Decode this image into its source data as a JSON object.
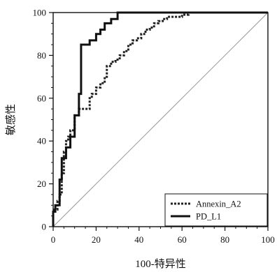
{
  "chart_data": {
    "type": "line",
    "xlabel": "100-特异性",
    "ylabel": "敏感性",
    "xlim": [
      0,
      100
    ],
    "ylim": [
      0,
      100
    ],
    "x_ticks": [
      "0",
      "20",
      "40",
      "60",
      "80",
      "100"
    ],
    "y_ticks": [
      "0",
      "20",
      "40",
      "60",
      "80",
      "100"
    ],
    "grid": false,
    "legend_position": "bottom-right",
    "reference_line": {
      "x": [
        0,
        100
      ],
      "y": [
        0,
        100
      ],
      "color": "#9a9a9a"
    },
    "series": [
      {
        "name": "Annexin_A2",
        "style": "dotted",
        "color": "#222222",
        "x": [
          0,
          0,
          2,
          2,
          3,
          3,
          4,
          4,
          5,
          5,
          6,
          6,
          7,
          7,
          8,
          8,
          10,
          10,
          12,
          12,
          17,
          17,
          18,
          18,
          20,
          20,
          22,
          22,
          24,
          24,
          25,
          25,
          27,
          27,
          29,
          29,
          31,
          31,
          33,
          33,
          35,
          35,
          37,
          37,
          39,
          39,
          41,
          41,
          43,
          43,
          45,
          45,
          47,
          47,
          49,
          49,
          51,
          51,
          53,
          53,
          60,
          60,
          63,
          63,
          100
        ],
        "y": [
          0,
          8,
          8,
          12,
          12,
          15,
          15,
          25,
          25,
          35,
          35,
          40,
          40,
          42,
          42,
          45,
          45,
          52,
          52,
          55,
          55,
          60,
          60,
          62,
          62,
          65,
          65,
          67,
          67,
          70,
          70,
          75,
          75,
          77,
          77,
          78,
          78,
          80,
          80,
          82,
          82,
          85,
          85,
          87,
          87,
          88,
          88,
          90,
          90,
          92,
          92,
          93,
          93,
          95,
          95,
          96,
          96,
          97,
          97,
          98,
          98,
          99,
          99,
          100,
          100
        ]
      },
      {
        "name": "PD_L1",
        "style": "solid",
        "color": "#111111",
        "x": [
          0,
          0,
          1,
          1,
          3,
          3,
          4,
          4,
          6,
          6,
          8,
          8,
          10,
          10,
          12,
          12,
          13,
          13,
          17,
          17,
          20,
          20,
          22,
          22,
          24,
          24,
          27,
          27,
          30,
          30,
          100
        ],
        "y": [
          0,
          7,
          7,
          10,
          10,
          22,
          22,
          32,
          32,
          37,
          37,
          42,
          42,
          52,
          52,
          62,
          62,
          85,
          85,
          87,
          87,
          90,
          90,
          92,
          92,
          95,
          95,
          97,
          97,
          100,
          100
        ]
      }
    ]
  }
}
